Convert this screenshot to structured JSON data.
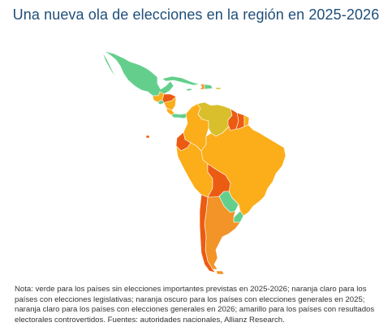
{
  "title": "Una nueva ola de elecciones en la región en 2025-2026",
  "legend_colors": {
    "no_major_elections": "#64cf8c",
    "legislative_elections": "#f29427",
    "general_elections_2025": "#ec5b12",
    "general_elections_2026": "#fbad1a",
    "contested_results": "#d8bf2b"
  },
  "countries": [
    {
      "name": "Mexico",
      "category": "no_major_elections"
    },
    {
      "name": "Guatemala",
      "category": "general_elections_2026"
    },
    {
      "name": "El Salvador",
      "category": "no_major_elections"
    },
    {
      "name": "Honduras",
      "category": "general_elections_2025"
    },
    {
      "name": "Nicaragua",
      "category": "general_elections_2026"
    },
    {
      "name": "Costa Rica",
      "category": "general_elections_2026"
    },
    {
      "name": "Panama",
      "category": "no_major_elections"
    },
    {
      "name": "Cuba",
      "category": "no_major_elections"
    },
    {
      "name": "Dominican Republic",
      "category": "no_major_elections"
    },
    {
      "name": "Haiti",
      "category": "legislative_elections"
    },
    {
      "name": "Colombia",
      "category": "general_elections_2026"
    },
    {
      "name": "Venezuela",
      "category": "contested_results"
    },
    {
      "name": "Guyana",
      "category": "general_elections_2025"
    },
    {
      "name": "Suriname",
      "category": "general_elections_2025"
    },
    {
      "name": "French Guiana",
      "category": "general_elections_2026"
    },
    {
      "name": "Ecuador",
      "category": "general_elections_2025"
    },
    {
      "name": "Peru",
      "category": "general_elections_2026"
    },
    {
      "name": "Brazil",
      "category": "general_elections_2026"
    },
    {
      "name": "Bolivia",
      "category": "general_elections_2025"
    },
    {
      "name": "Paraguay",
      "category": "no_major_elections"
    },
    {
      "name": "Chile",
      "category": "general_elections_2025"
    },
    {
      "name": "Argentina",
      "category": "legislative_elections"
    },
    {
      "name": "Uruguay",
      "category": "no_major_elections"
    }
  ],
  "note": "Nota: verde para los países sin elecciones importantes previstas en 2025-2026; naranja claro para los países con elecciones legislativas; naranja oscuro para los países con elecciones generales en 2025; naranja claro para los países con elecciones generales en 2026; amarillo para los países con resultados electorales controvertidos. Fuentes: autoridades nacionales, Allianz Research."
}
